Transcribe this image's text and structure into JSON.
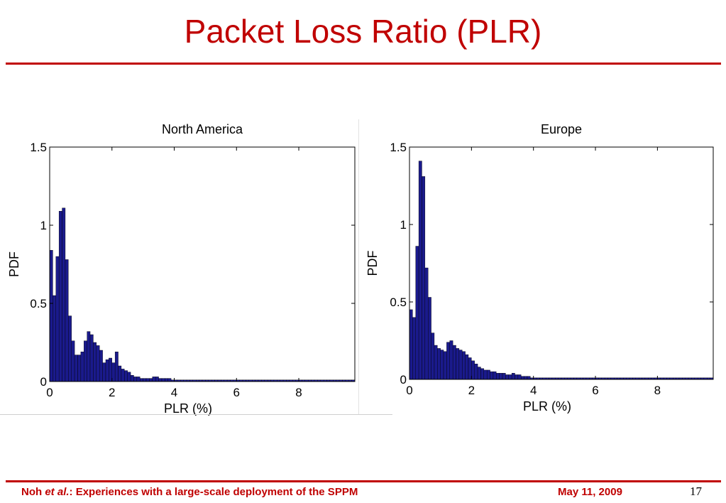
{
  "slide": {
    "title": "Packet Loss Ratio (PLR)",
    "accent_color": "#c00000",
    "footer_author": "Noh",
    "footer_etal": "et al.",
    "footer_rest": ": Experiences with a large-scale deployment of the SPPM",
    "footer_date": "May 11, 2009",
    "page_number": "17"
  },
  "bar_color": "#1a1a8c",
  "chart_data": [
    {
      "type": "bar",
      "title": "North America",
      "xlabel": "PLR (%)",
      "ylabel": "PDF",
      "xlim": [
        0,
        9.8
      ],
      "ylim": [
        0,
        1.5
      ],
      "xticks": [
        0,
        2,
        4,
        6,
        8
      ],
      "yticks": [
        0,
        0.5,
        1,
        1.5
      ],
      "ytick_labels": [
        "0",
        "0.5",
        "1",
        "1.5"
      ],
      "grid": false,
      "bin_width": 0.1,
      "bin_start": 0,
      "values": [
        0.84,
        0.55,
        0.8,
        1.09,
        1.11,
        0.78,
        0.42,
        0.26,
        0.17,
        0.17,
        0.19,
        0.26,
        0.32,
        0.3,
        0.25,
        0.23,
        0.2,
        0.12,
        0.14,
        0.15,
        0.12,
        0.19,
        0.1,
        0.08,
        0.07,
        0.06,
        0.04,
        0.03,
        0.03,
        0.02,
        0.02,
        0.02,
        0.02,
        0.03,
        0.03,
        0.02,
        0.02,
        0.02,
        0.02,
        0.01,
        0.01,
        0.01,
        0.01,
        0.01,
        0.01,
        0.01,
        0.01,
        0.01,
        0.01,
        0.01,
        0.01,
        0.01,
        0.01,
        0.01,
        0.01,
        0.01,
        0.01,
        0.01,
        0.01,
        0.01,
        0.01,
        0.01,
        0.01,
        0.01,
        0.01,
        0.01,
        0.01,
        0.01,
        0.01,
        0.01,
        0.01,
        0.01,
        0.01,
        0.01,
        0.01,
        0.01,
        0.01,
        0.01,
        0.01,
        0.01,
        0.01,
        0.01,
        0.01,
        0.01,
        0.01,
        0.01,
        0.01,
        0.01,
        0.01,
        0.01,
        0.01,
        0.01,
        0.01,
        0.01,
        0.01,
        0.01,
        0.01,
        0.01
      ]
    },
    {
      "type": "bar",
      "title": "Europe",
      "xlabel": "PLR (%)",
      "ylabel": "PDF",
      "xlim": [
        0,
        9.8
      ],
      "ylim": [
        0,
        1.5
      ],
      "xticks": [
        0,
        2,
        4,
        6,
        8
      ],
      "yticks": [
        0,
        0.5,
        1,
        1.5
      ],
      "ytick_labels": [
        "0",
        "0.5",
        "1",
        "1.5"
      ],
      "grid": false,
      "bin_width": 0.1,
      "bin_start": 0,
      "values": [
        0.45,
        0.4,
        0.86,
        1.41,
        1.31,
        0.72,
        0.53,
        0.3,
        0.22,
        0.2,
        0.19,
        0.18,
        0.24,
        0.25,
        0.22,
        0.2,
        0.19,
        0.18,
        0.16,
        0.14,
        0.12,
        0.1,
        0.08,
        0.07,
        0.06,
        0.06,
        0.05,
        0.05,
        0.04,
        0.04,
        0.04,
        0.03,
        0.03,
        0.04,
        0.03,
        0.03,
        0.02,
        0.02,
        0.02,
        0.01,
        0.01,
        0.01,
        0.01,
        0.01,
        0.01,
        0.01,
        0.01,
        0.01,
        0.01,
        0.01,
        0.01,
        0.01,
        0.01,
        0.01,
        0.01,
        0.01,
        0.01,
        0.01,
        0.01,
        0.01,
        0.01,
        0.01,
        0.01,
        0.01,
        0.01,
        0.01,
        0.01,
        0.01,
        0.01,
        0.01,
        0.01,
        0.01,
        0.01,
        0.01,
        0.01,
        0.01,
        0.01,
        0.01,
        0.01,
        0.01,
        0.01,
        0.01,
        0.01,
        0.01,
        0.01,
        0.01,
        0.01,
        0.01,
        0.01,
        0.01,
        0.01,
        0.01,
        0.01,
        0.01,
        0.01,
        0.01,
        0.01,
        0.01
      ]
    }
  ]
}
